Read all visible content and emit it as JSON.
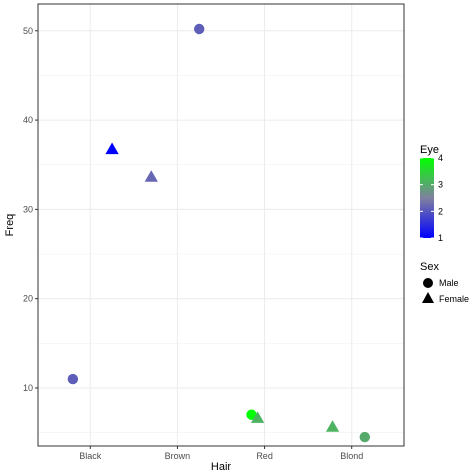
{
  "chart_data": {
    "type": "scatter",
    "xlabel": "Hair",
    "ylabel": "Freq",
    "categories": [
      "Black",
      "Brown",
      "Red",
      "Blond"
    ],
    "ylim": [
      3.5,
      53
    ],
    "yticks": [
      10,
      20,
      30,
      40,
      50
    ],
    "grid": true,
    "color_legend": {
      "title": "Eye",
      "min": 1,
      "max": 4,
      "ticks": [
        "1",
        "2",
        "3",
        "4"
      ],
      "low_color": "#0000ff",
      "mid_color": "#8080a0",
      "high_color": "#00ff00"
    },
    "shape_legend": {
      "title": "Sex",
      "items": [
        {
          "label": "Male",
          "shape": "circle"
        },
        {
          "label": "Female",
          "shape": "triangle"
        }
      ]
    },
    "points": [
      {
        "hair": "Black",
        "x": 0.8,
        "y": 11.0,
        "eye": 2.1,
        "sex": "Male"
      },
      {
        "hair": "Black",
        "x": 1.25,
        "y": 36.7,
        "eye": 1.0,
        "sex": "Female"
      },
      {
        "hair": "Brown",
        "x": 1.7,
        "y": 33.6,
        "eye": 2.2,
        "sex": "Female"
      },
      {
        "hair": "Brown",
        "x": 2.25,
        "y": 50.2,
        "eye": 2.1,
        "sex": "Male"
      },
      {
        "hair": "Red",
        "x": 2.85,
        "y": 7.0,
        "eye": 4.0,
        "sex": "Male"
      },
      {
        "hair": "Red",
        "x": 2.92,
        "y": 6.6,
        "eye": 3.1,
        "sex": "Female"
      },
      {
        "hair": "Blond",
        "x": 3.78,
        "y": 5.6,
        "eye": 3.1,
        "sex": "Female"
      },
      {
        "hair": "Blond",
        "x": 4.15,
        "y": 4.5,
        "eye": 3.0,
        "sex": "Male"
      }
    ]
  }
}
